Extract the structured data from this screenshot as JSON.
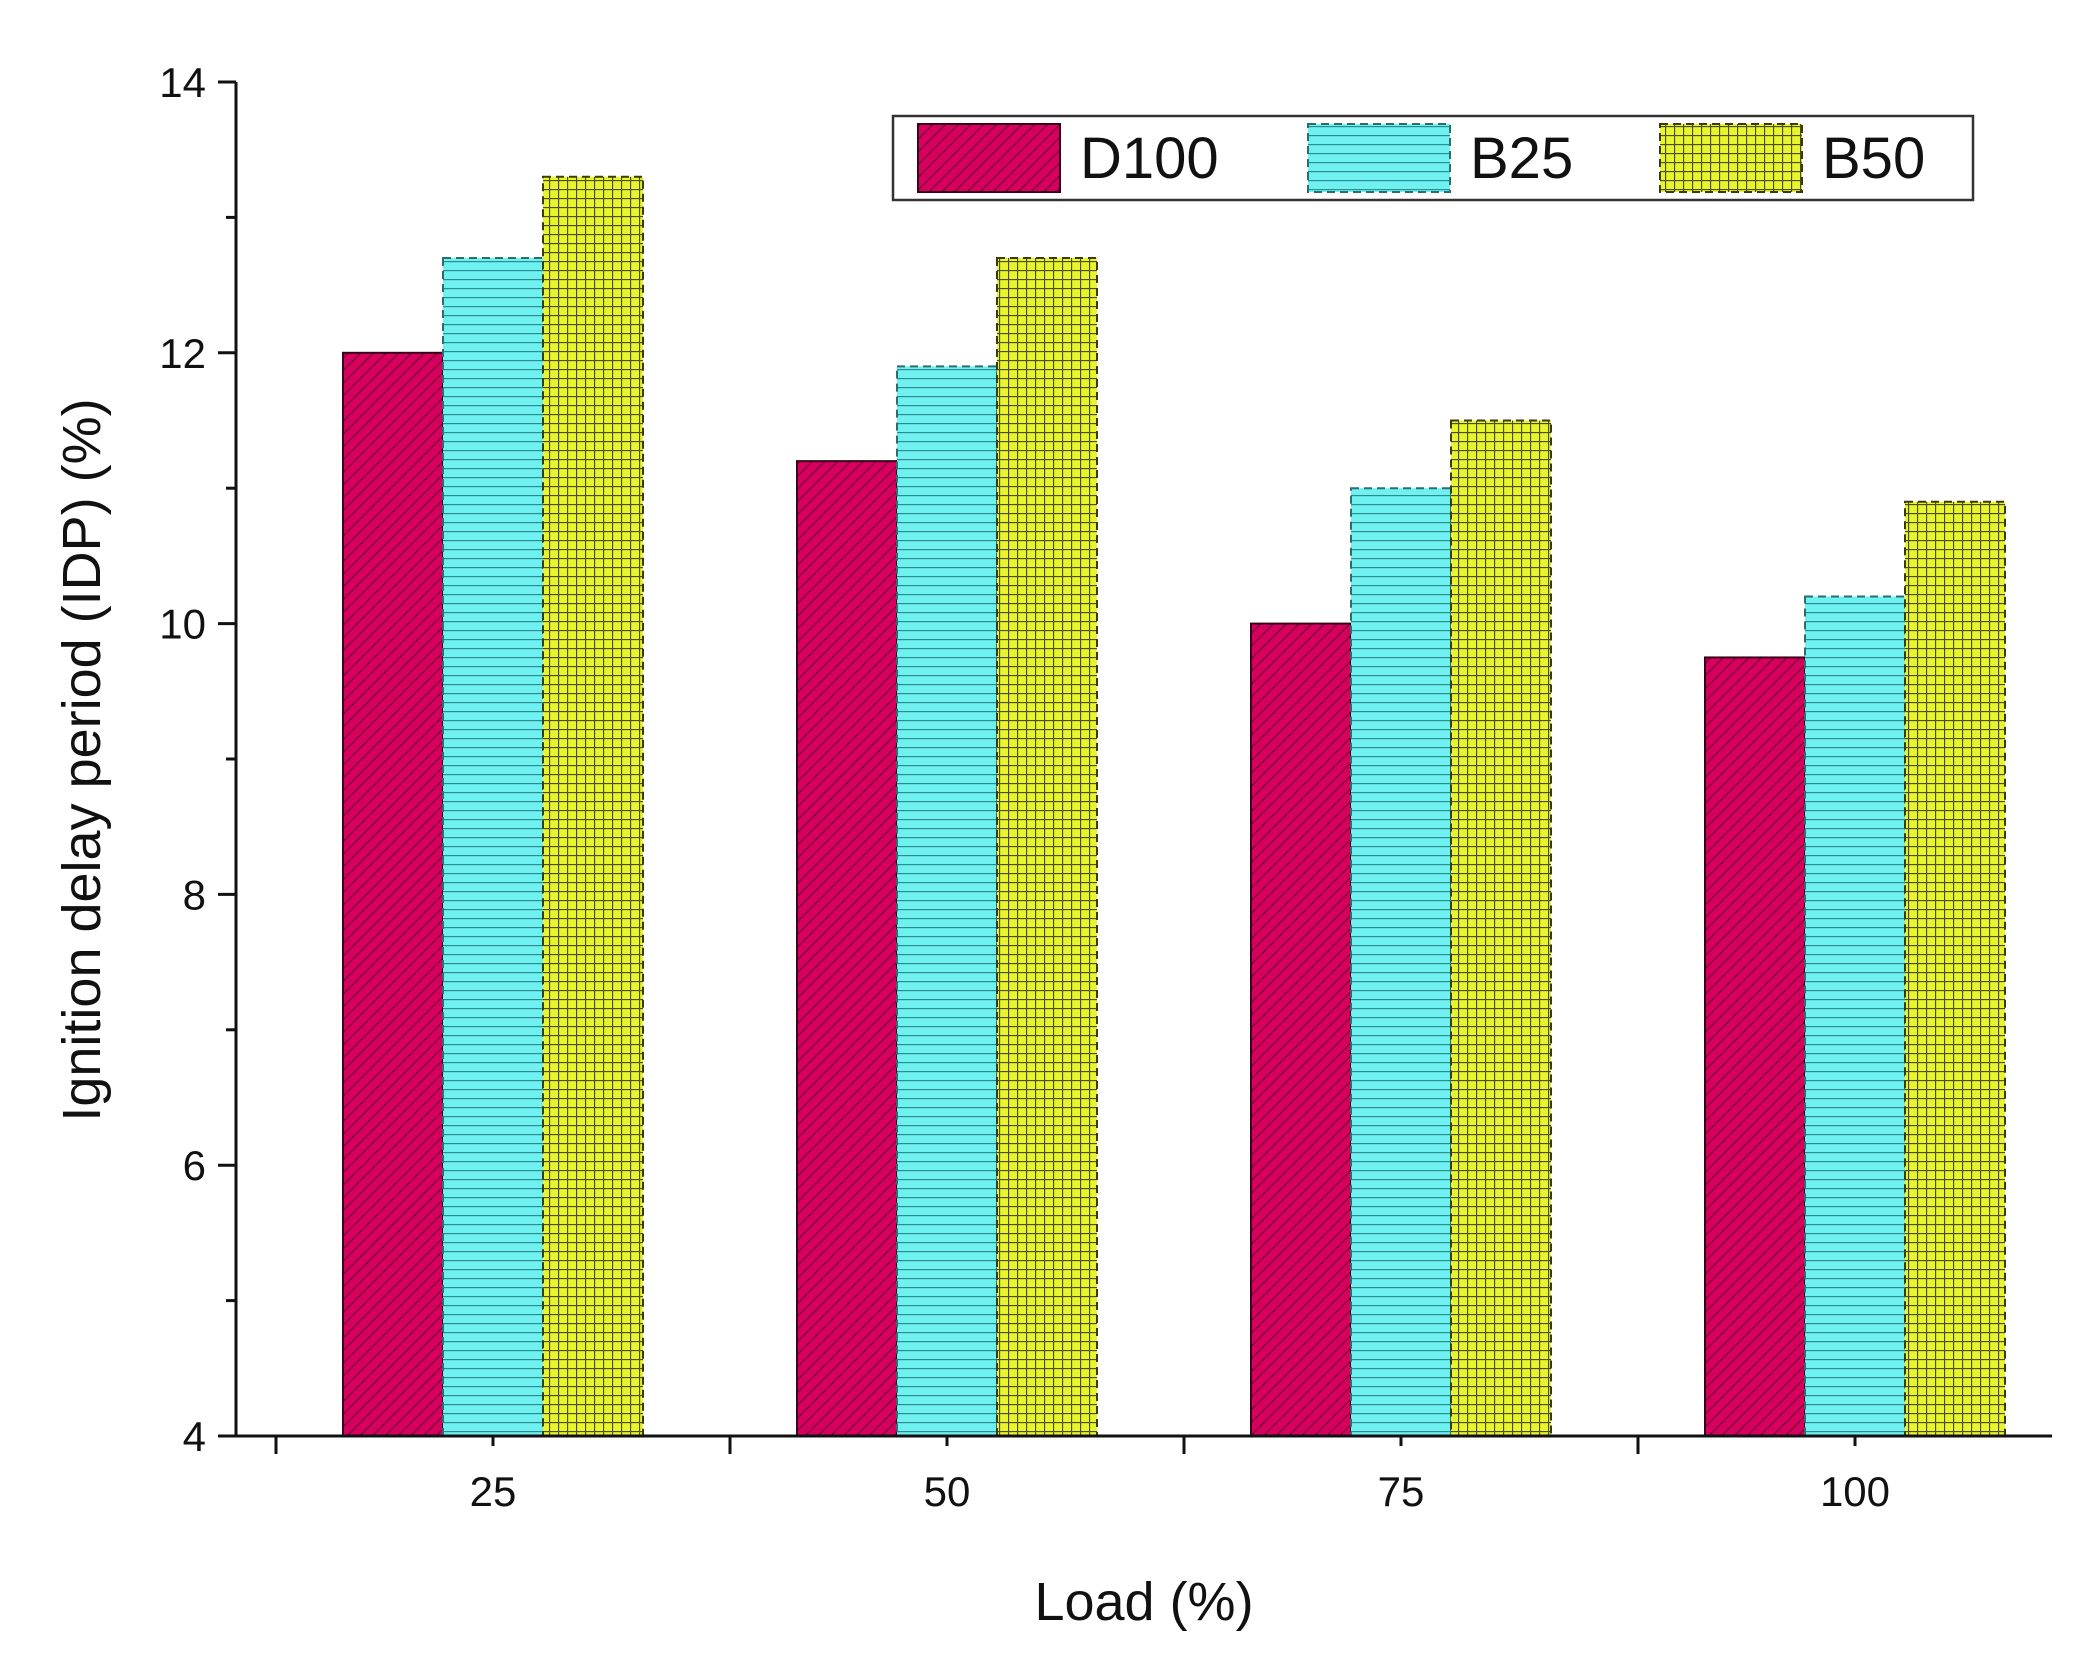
{
  "chart_data": {
    "type": "bar",
    "categories": [
      "25",
      "50",
      "75",
      "100"
    ],
    "series": [
      {
        "name": "D100",
        "values": [
          12.0,
          11.2,
          10.0,
          9.75
        ],
        "color": "#d6005f",
        "pattern": "diagonal"
      },
      {
        "name": "B25",
        "values": [
          12.7,
          11.9,
          11.0,
          10.2
        ],
        "color": "#6ff1f1",
        "pattern": "horizontal"
      },
      {
        "name": "B50",
        "values": [
          13.3,
          12.7,
          11.5,
          10.9
        ],
        "color": "#e8f52e",
        "pattern": "grid"
      }
    ],
    "xlabel": "Load (%)",
    "ylabel": "Ignition delay period (IDP) (%)",
    "ylim": [
      4,
      14
    ],
    "yticks": [
      "4",
      "6",
      "8",
      "10",
      "12",
      "14"
    ],
    "grid": false,
    "legend_position": "top-right"
  }
}
